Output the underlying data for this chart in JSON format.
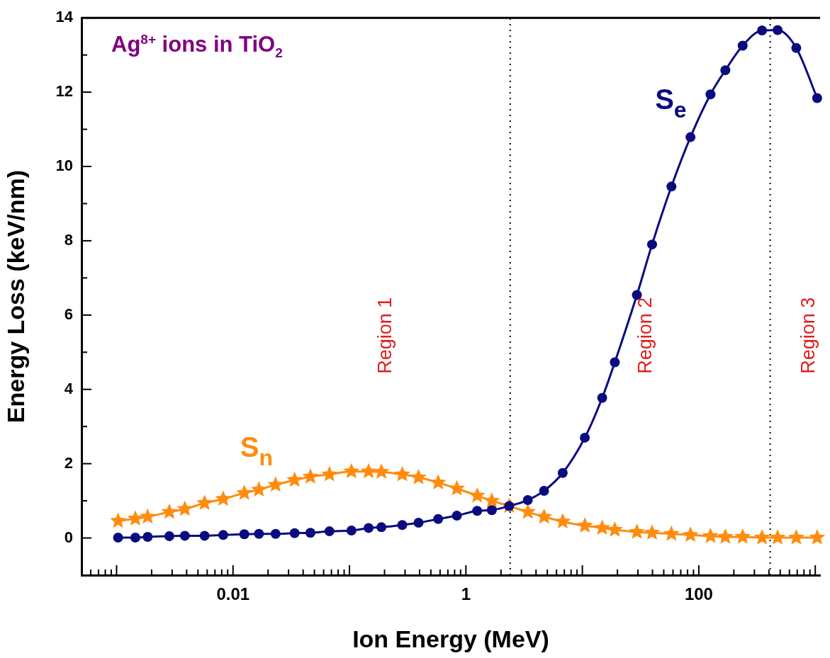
{
  "chart_data": {
    "type": "line",
    "title": "Ag$^{8+}$ ions in TiO$_{2}$",
    "xlabel": "Ion Energy (MeV)",
    "ylabel": "Energy Loss (keV/nm)",
    "x": [
      0.00103,
      0.00145,
      0.00185,
      0.00284,
      0.00386,
      0.0057,
      0.00824,
      0.0125,
      0.0167,
      0.0232,
      0.0338,
      0.0462,
      0.0673,
      0.104,
      0.146,
      0.188,
      0.284,
      0.392,
      0.578,
      0.836,
      1.25,
      1.67,
      2.35,
      3.4,
      4.69,
      6.78,
      10.5,
      14.8,
      19.0,
      29.4,
      39.7,
      58.2,
      84.8,
      126,
      169,
      238,
      349,
      475,
      687,
      1038
    ],
    "series": [
      {
        "name": "S$_{e}$",
        "color": "#0b0b80",
        "marker": "circle",
        "values": [
          0.01,
          0.01,
          0.03,
          0.05,
          0.06,
          0.06,
          0.08,
          0.1,
          0.11,
          0.11,
          0.13,
          0.14,
          0.18,
          0.2,
          0.27,
          0.29,
          0.35,
          0.41,
          0.51,
          0.6,
          0.73,
          0.75,
          0.86,
          1.02,
          1.27,
          1.75,
          2.7,
          3.77,
          4.73,
          6.54,
          7.9,
          9.46,
          10.79,
          11.94,
          12.59,
          13.25,
          13.66,
          13.67,
          13.19,
          11.84
        ]
      },
      {
        "name": "S$_{n}$",
        "color": "#ff8c0f",
        "marker": "star",
        "values": [
          0.46,
          0.52,
          0.57,
          0.7,
          0.78,
          0.94,
          1.05,
          1.21,
          1.3,
          1.43,
          1.56,
          1.65,
          1.71,
          1.79,
          1.79,
          1.78,
          1.71,
          1.63,
          1.49,
          1.33,
          1.14,
          1.0,
          0.86,
          0.7,
          0.57,
          0.44,
          0.33,
          0.27,
          0.22,
          0.16,
          0.14,
          0.11,
          0.08,
          0.05,
          0.03,
          0.03,
          0.01,
          0.01,
          0.01,
          0.01
        ]
      }
    ],
    "log": "x",
    "grid": false,
    "legend": false,
    "xlim": [
      0.0005,
      1100
    ],
    "xticks": [
      {
        "value": 0.0005,
        "label": null
      },
      {
        "value": 0.0006,
        "label": null
      },
      {
        "value": 0.0007,
        "label": null
      },
      {
        "value": 0.0008,
        "label": null
      },
      {
        "value": 0.0009,
        "label": null
      },
      {
        "value": 0.001,
        "label": null
      },
      {
        "value": 0.002,
        "label": null
      },
      {
        "value": 0.003,
        "label": null
      },
      {
        "value": 0.004,
        "label": null
      },
      {
        "value": 0.005,
        "label": null
      },
      {
        "value": 0.006,
        "label": null
      },
      {
        "value": 0.007,
        "label": null
      },
      {
        "value": 0.008,
        "label": null
      },
      {
        "value": 0.009,
        "label": null
      },
      0.01,
      {
        "value": 0.02,
        "label": null
      },
      {
        "value": 0.03,
        "label": null
      },
      {
        "value": 0.04,
        "label": null
      },
      {
        "value": 0.05,
        "label": null
      },
      {
        "value": 0.06,
        "label": null
      },
      {
        "value": 0.07,
        "label": null
      },
      {
        "value": 0.08,
        "label": null
      },
      {
        "value": 0.09,
        "label": null
      },
      {
        "value": 0.1,
        "label": null
      },
      {
        "value": 0.2,
        "label": null
      },
      {
        "value": 0.3,
        "label": null
      },
      {
        "value": 0.4,
        "label": null
      },
      {
        "value": 0.5,
        "label": null
      },
      {
        "value": 0.6,
        "label": null
      },
      {
        "value": 0.7,
        "label": null
      },
      {
        "value": 0.8,
        "label": null
      },
      {
        "value": 0.9,
        "label": null
      },
      1,
      {
        "value": 2,
        "label": null
      },
      {
        "value": 3,
        "label": null
      },
      {
        "value": 4,
        "label": null
      },
      {
        "value": 5,
        "label": null
      },
      {
        "value": 6,
        "label": null
      },
      {
        "value": 7,
        "label": null
      },
      {
        "value": 8,
        "label": null
      },
      {
        "value": 9,
        "label": null
      },
      {
        "value": 10,
        "label": null
      },
      {
        "value": 20,
        "label": null
      },
      {
        "value": 30,
        "label": null
      },
      {
        "value": 40,
        "label": null
      },
      {
        "value": 50,
        "label": null
      },
      {
        "value": 60,
        "label": null
      },
      {
        "value": 70,
        "label": null
      },
      {
        "value": 80,
        "label": null
      },
      {
        "value": 90,
        "label": null
      },
      100,
      {
        "value": 200,
        "label": null
      },
      {
        "value": 300,
        "label": null
      },
      {
        "value": 400,
        "label": null
      },
      {
        "value": 500,
        "label": null
      },
      {
        "value": 600,
        "label": null
      },
      {
        "value": 700,
        "label": null
      },
      {
        "value": 800,
        "label": null
      },
      {
        "value": 900,
        "label": null
      },
      {
        "value": 1000,
        "label": null
      }
    ],
    "ylim": [
      -1,
      14
    ],
    "yticks": [
      {
        "value": -1,
        "label": null
      },
      0,
      {
        "value": 1,
        "label": null
      },
      2,
      {
        "value": 3,
        "label": null
      },
      4,
      {
        "value": 5,
        "label": null
      },
      6,
      {
        "value": 7,
        "label": null
      },
      8,
      {
        "value": 9,
        "label": null
      },
      10,
      {
        "value": 11,
        "label": null
      },
      12,
      {
        "value": 13,
        "label": null
      },
      14
    ],
    "ref_lines": [
      {
        "axis": "x",
        "value": 2.4,
        "label": null,
        "color": "#000000",
        "line_style": "dotted"
      },
      {
        "axis": "x",
        "value": 410,
        "label": null,
        "color": "#000000",
        "line_style": "dotted"
      }
    ],
    "annotations": [
      "Region 1",
      "Region 2",
      "Region 3"
    ]
  }
}
